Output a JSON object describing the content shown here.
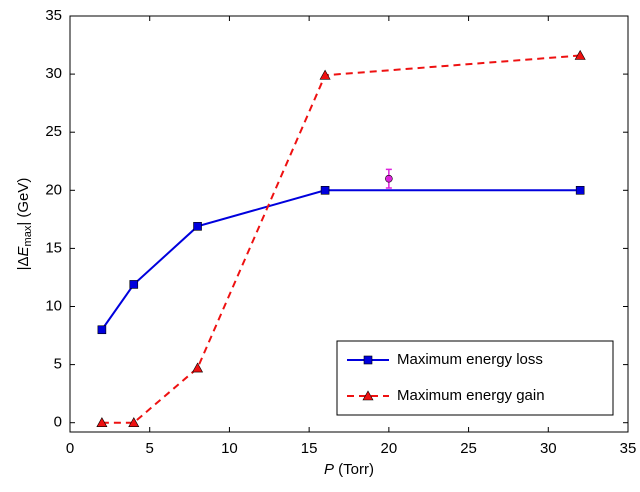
{
  "chart_data": {
    "type": "line",
    "xlabel": [
      "P",
      " (Torr)"
    ],
    "ylabel": [
      "|Δ",
      "E",
      "max",
      "| (GeV)"
    ],
    "x": [
      2,
      4,
      8,
      16,
      32
    ],
    "series": [
      {
        "name": "Maximum energy loss",
        "color": "#0000dd",
        "dash": "solid",
        "marker": "square",
        "values": [
          8,
          11.9,
          16.9,
          20,
          20
        ]
      },
      {
        "name": "Maximum energy gain",
        "color": "#ee1111",
        "dash": "dashed",
        "marker": "triangle",
        "values": [
          0,
          0,
          4.7,
          29.9,
          31.6
        ]
      }
    ],
    "points": [
      {
        "x": 20,
        "y": 21,
        "error": 0.8,
        "color": "#dd22dd"
      }
    ],
    "xlim": [
      0,
      35
    ],
    "xticks": [
      0,
      5,
      10,
      15,
      20,
      25,
      30,
      35
    ],
    "ylim": [
      -0.8,
      35
    ],
    "yticks": [
      0,
      5,
      10,
      15,
      20,
      25,
      30,
      35
    ],
    "legend": "lower right"
  }
}
